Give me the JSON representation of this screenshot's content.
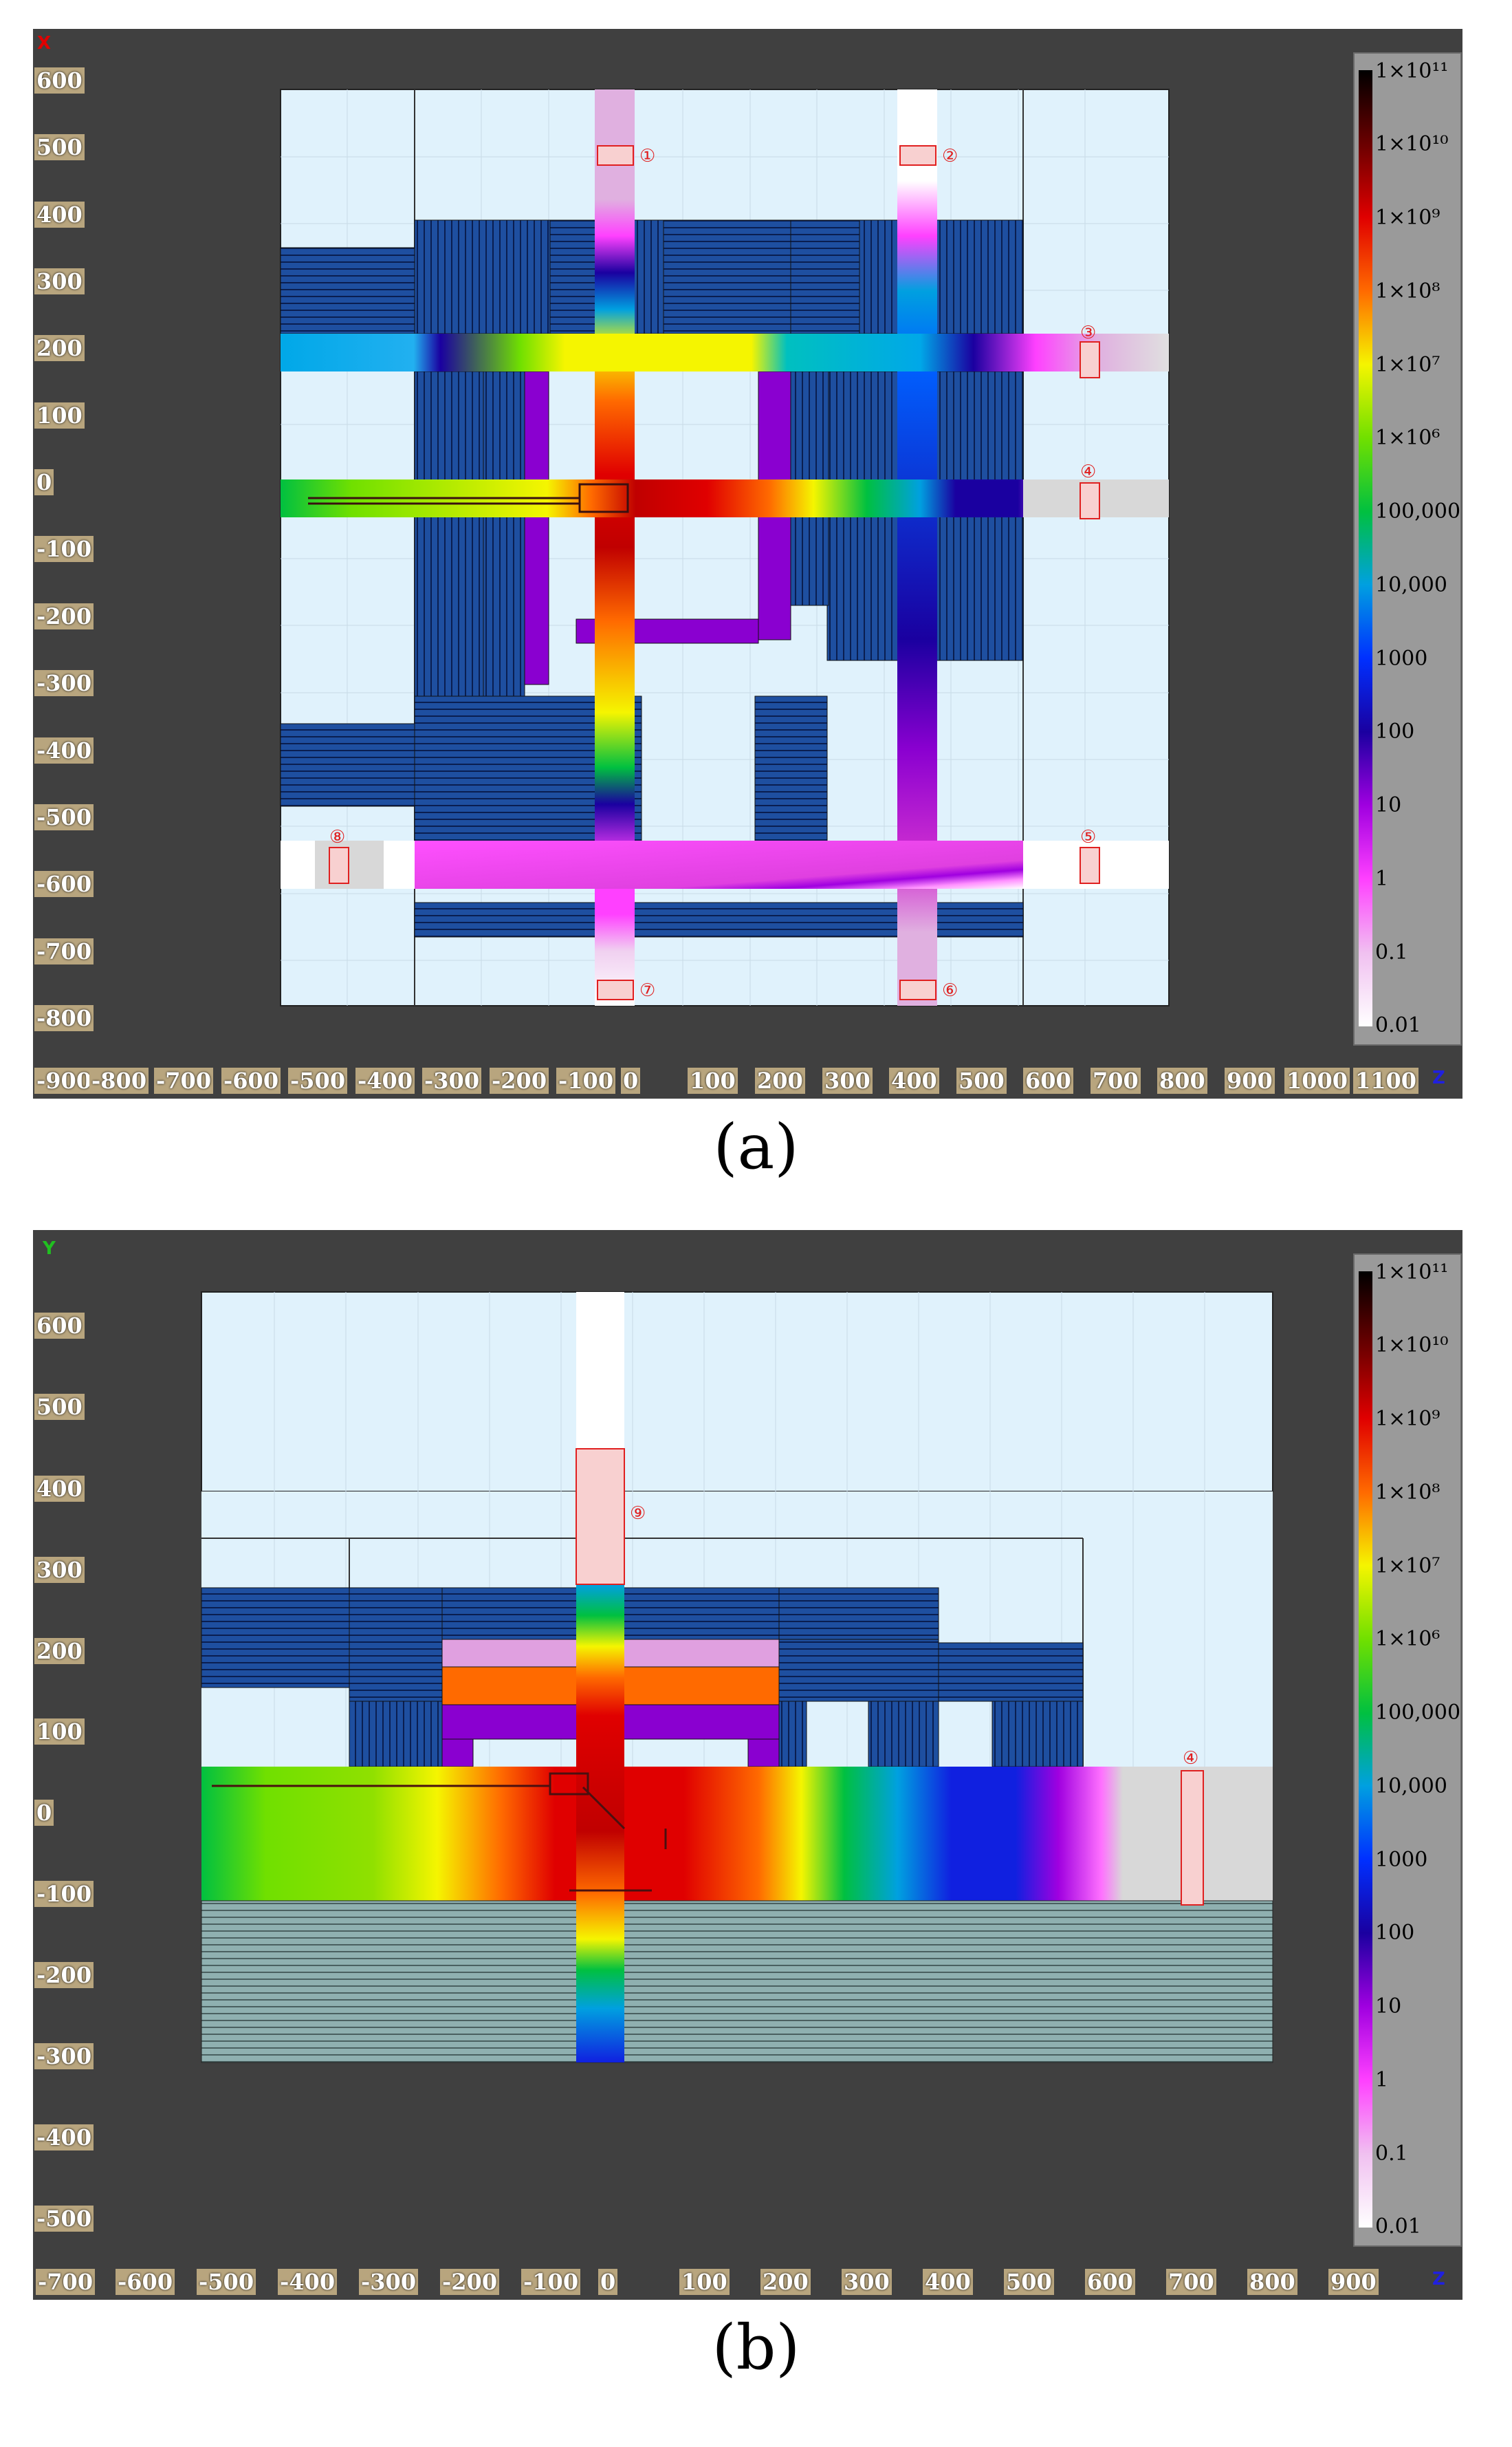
{
  "figure_a": {
    "caption": "(a)",
    "corner_axis_top": "X",
    "corner_axis_right": "Z",
    "y_ticks": [
      "600",
      "500",
      "400",
      "300",
      "200",
      "100",
      "0",
      "-100",
      "-200",
      "-300",
      "-400",
      "-500",
      "-600",
      "-700",
      "-800"
    ],
    "x_ticks": [
      "-900",
      "-800",
      "-700",
      "-600",
      "-500",
      "-400",
      "-300",
      "-200",
      "-100",
      "0",
      "100",
      "200",
      "300",
      "400",
      "500",
      "600",
      "700",
      "800",
      "900",
      "1000",
      "1100"
    ],
    "markers": [
      "①",
      "②",
      "③",
      "④",
      "⑤",
      "⑥",
      "⑦",
      "⑧"
    ]
  },
  "figure_b": {
    "caption": "(b)",
    "corner_axis_top": "Y",
    "corner_axis_right": "Z",
    "y_ticks": [
      "600",
      "500",
      "400",
      "300",
      "200",
      "100",
      "0",
      "-100",
      "-200",
      "-300",
      "-400",
      "-500"
    ],
    "x_ticks": [
      "-700",
      "-600",
      "-500",
      "-400",
      "-300",
      "-200",
      "-100",
      "0",
      "100",
      "200",
      "300",
      "400",
      "500",
      "600",
      "700",
      "800",
      "900"
    ],
    "markers": [
      "⑨",
      "④"
    ]
  },
  "legend": {
    "labels": [
      "1×10¹¹",
      "1×10¹⁰",
      "1×10⁹",
      "1×10⁸",
      "1×10⁷",
      "1×10⁶",
      "100,000",
      "10,000",
      "1000",
      "100",
      "10",
      "1",
      "0.1",
      "0.01"
    ],
    "colors": [
      "#000000",
      "#6a0000",
      "#e00000",
      "#ff6a00",
      "#f5f500",
      "#70e000",
      "#00c040",
      "#00a0e0",
      "#0030ff",
      "#1a00a0",
      "#a000e0",
      "#ff40ff",
      "#f0c0f0",
      "#ffffff"
    ]
  },
  "colors": {
    "panel_bg": "#404040",
    "void": "#e0f2fc",
    "shield": "#1e4fa0",
    "soil": "#8fb0b0",
    "grey_region": "#d8d8d8"
  }
}
